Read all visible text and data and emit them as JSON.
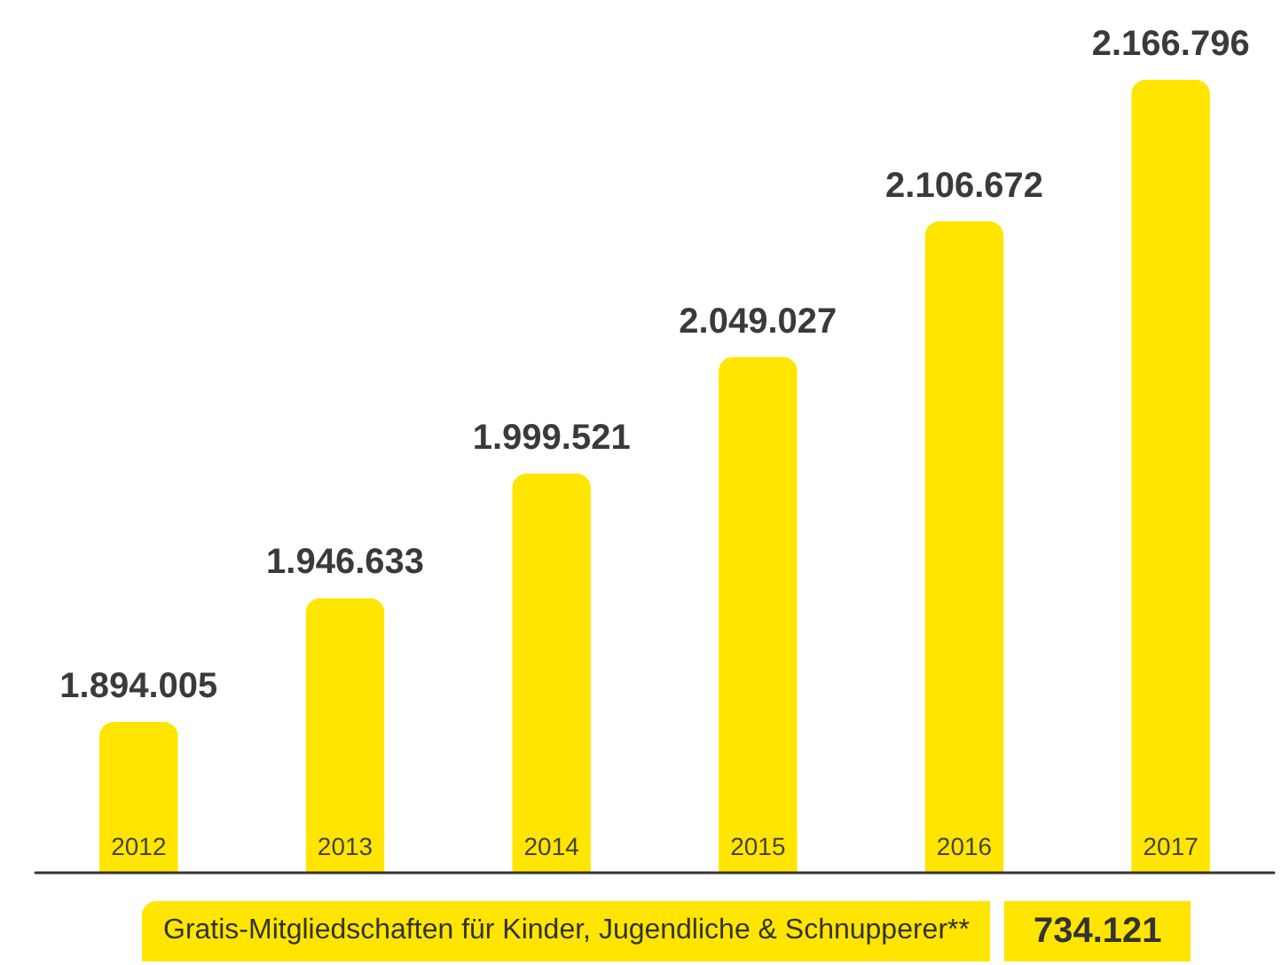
{
  "chart_data": {
    "type": "bar",
    "categories": [
      "2012",
      "2013",
      "2014",
      "2015",
      "2016",
      "2017"
    ],
    "values": [
      1894005,
      1946633,
      1999521,
      2049027,
      2106672,
      2166796
    ],
    "value_labels": [
      "1.894.005",
      "1.946.633",
      "1.999.521",
      "2.049.027",
      "2.106.672",
      "2.166.796"
    ],
    "color": "#ffe500",
    "ylim": [
      1830000,
      2166796
    ],
    "annotations": [
      "Gratis-Mitgliedschaften für Kinder, Jugendliche & Schnupperer**",
      "734.121"
    ]
  }
}
